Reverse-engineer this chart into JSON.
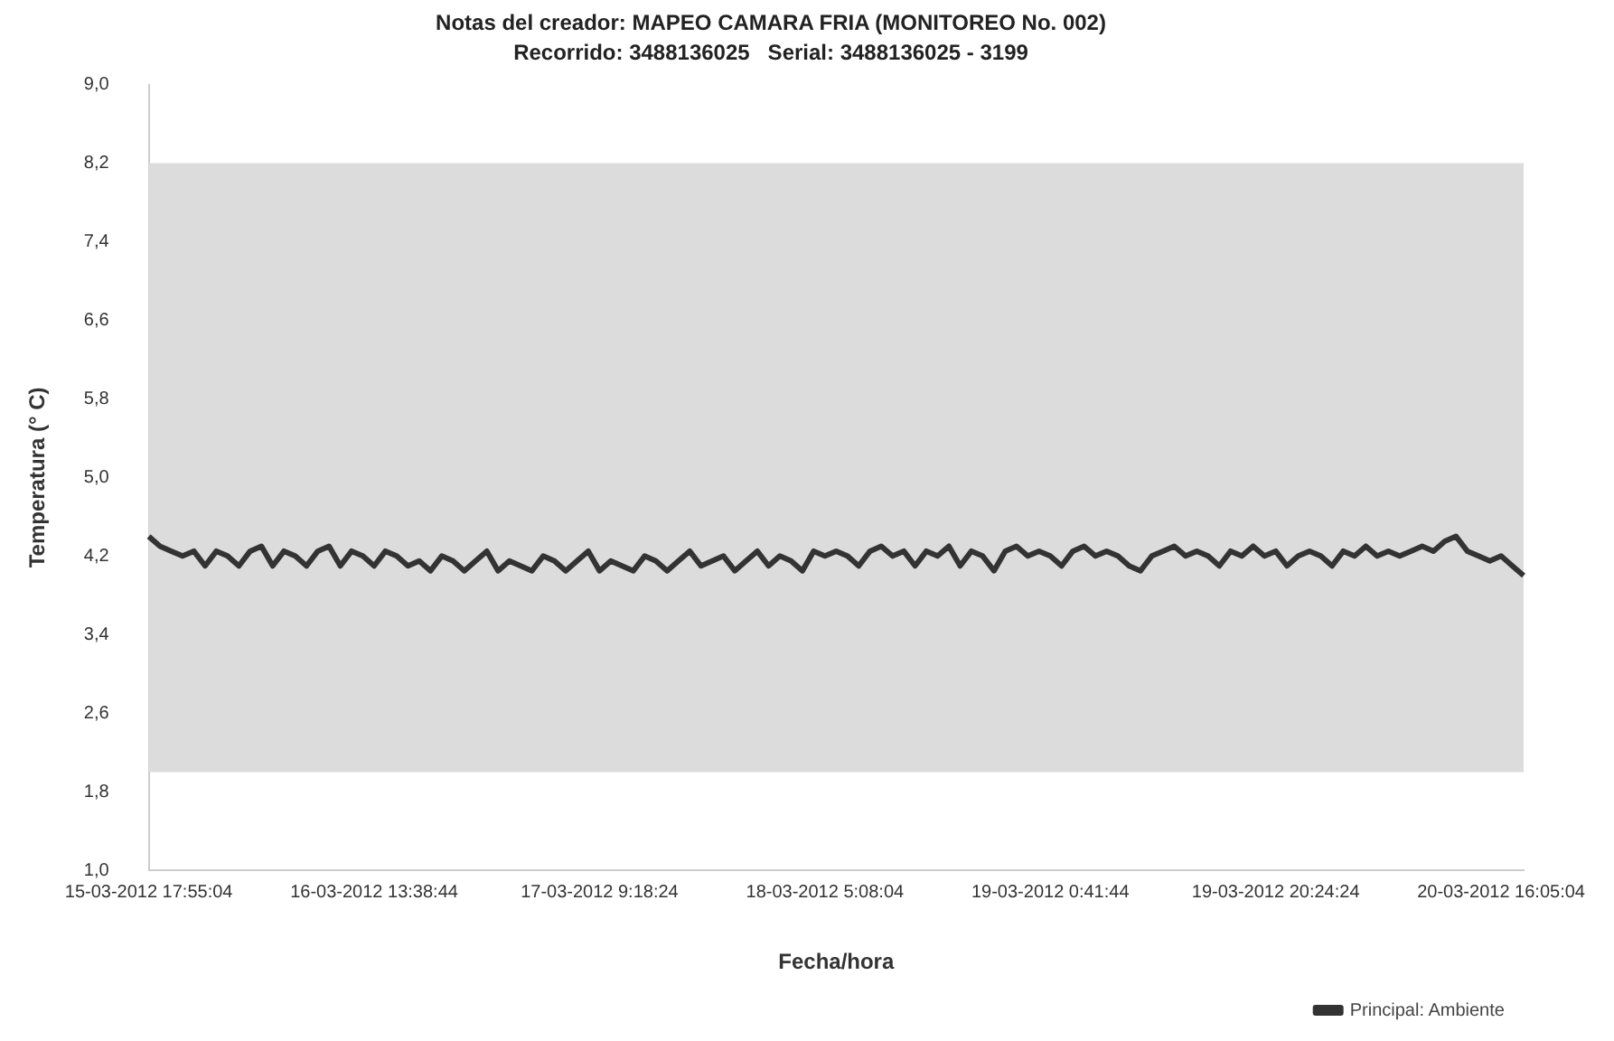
{
  "chart_data": {
    "type": "line",
    "title": "Notas del creador: MAPEO CAMARA FRIA (MONITOREO No. 002)",
    "subtitle": "Recorrido: 3488136025   Serial: 3488136025 - 3199",
    "xlabel": "Fecha/hora",
    "ylabel": "Temperatura (° C)",
    "categories": [
      "15-03-2012 17:55:04",
      null,
      null,
      null,
      null,
      null,
      null,
      null,
      null,
      null,
      null,
      null,
      null,
      null,
      null,
      null,
      null,
      null,
      null,
      null,
      "16-03-2012 13:38:44",
      null,
      null,
      null,
      null,
      null,
      null,
      null,
      null,
      null,
      null,
      null,
      null,
      null,
      null,
      null,
      null,
      null,
      null,
      null,
      "17-03-2012 9:18:24",
      null,
      null,
      null,
      null,
      null,
      null,
      null,
      null,
      null,
      null,
      null,
      null,
      null,
      null,
      null,
      null,
      null,
      null,
      null,
      "18-03-2012 5:08:04",
      null,
      null,
      null,
      null,
      null,
      null,
      null,
      null,
      null,
      null,
      null,
      null,
      null,
      null,
      null,
      null,
      null,
      null,
      null,
      "19-03-2012 0:41:44",
      null,
      null,
      null,
      null,
      null,
      null,
      null,
      null,
      null,
      null,
      null,
      null,
      null,
      null,
      null,
      null,
      null,
      null,
      null,
      "19-03-2012 20:24:24",
      null,
      null,
      null,
      null,
      null,
      null,
      null,
      null,
      null,
      null,
      null,
      null,
      null,
      null,
      null,
      null,
      null,
      null,
      null,
      "20-03-2012 16:05:04",
      null,
      null
    ],
    "series": [
      {
        "name": "Principal: Ambiente",
        "color": "#333333",
        "values": [
          4.4,
          4.3,
          4.25,
          4.2,
          4.25,
          4.1,
          4.25,
          4.2,
          4.1,
          4.25,
          4.3,
          4.1,
          4.25,
          4.2,
          4.1,
          4.25,
          4.3,
          4.1,
          4.25,
          4.2,
          4.1,
          4.25,
          4.2,
          4.1,
          4.15,
          4.05,
          4.2,
          4.15,
          4.05,
          4.15,
          4.25,
          4.05,
          4.15,
          4.1,
          4.05,
          4.2,
          4.15,
          4.05,
          4.15,
          4.25,
          4.05,
          4.15,
          4.1,
          4.05,
          4.2,
          4.15,
          4.05,
          4.15,
          4.25,
          4.1,
          4.15,
          4.2,
          4.05,
          4.15,
          4.25,
          4.1,
          4.2,
          4.15,
          4.05,
          4.25,
          4.2,
          4.25,
          4.2,
          4.1,
          4.25,
          4.3,
          4.2,
          4.25,
          4.1,
          4.25,
          4.2,
          4.3,
          4.1,
          4.25,
          4.2,
          4.05,
          4.25,
          4.3,
          4.2,
          4.25,
          4.2,
          4.1,
          4.25,
          4.3,
          4.2,
          4.25,
          4.2,
          4.1,
          4.05,
          4.2,
          4.25,
          4.3,
          4.2,
          4.25,
          4.2,
          4.1,
          4.25,
          4.2,
          4.3,
          4.2,
          4.25,
          4.1,
          4.2,
          4.25,
          4.2,
          4.1,
          4.25,
          4.2,
          4.3,
          4.2,
          4.25,
          4.2,
          4.25,
          4.3,
          4.25,
          4.35,
          4.4,
          4.25,
          4.2,
          4.15,
          4.2,
          4.1,
          4.0
        ]
      }
    ],
    "ylim": [
      1.0,
      9.0
    ],
    "yticks": [
      {
        "value": 1.0,
        "label": "1,0"
      },
      {
        "value": 1.8,
        "label": "1,8"
      },
      {
        "value": 2.6,
        "label": "2,6"
      },
      {
        "value": 3.4,
        "label": "3,4"
      },
      {
        "value": 4.2,
        "label": "4,2"
      },
      {
        "value": 5.0,
        "label": "5,0"
      },
      {
        "value": 5.8,
        "label": "5,8"
      },
      {
        "value": 6.6,
        "label": "6,6"
      },
      {
        "value": 7.4,
        "label": "7,4"
      },
      {
        "value": 8.2,
        "label": "8,2"
      },
      {
        "value": 9.0,
        "label": "9,0"
      }
    ],
    "bands": [
      {
        "axis": "y",
        "from": 2.0,
        "to": 8.2,
        "color": "#dcdcdc"
      }
    ],
    "legend": "bottom right",
    "marker": "none",
    "line_style": "solid"
  }
}
